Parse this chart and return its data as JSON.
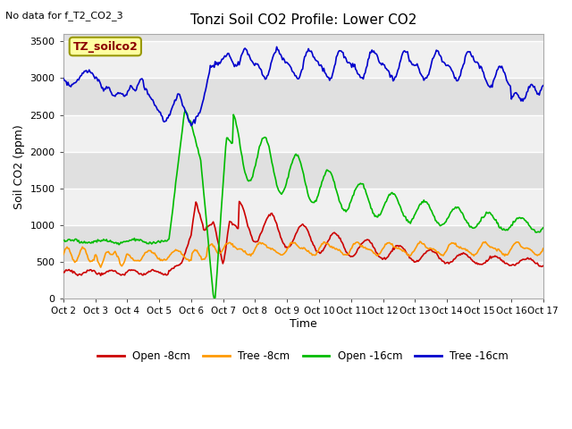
{
  "title": "Tonzi Soil CO2 Profile: Lower CO2",
  "subtitle": "No data for f_T2_CO2_3",
  "ylabel": "Soil CO2 (ppm)",
  "xlabel": "Time",
  "legend_label": "TZ_soilco2",
  "legend_entries": [
    "Open -8cm",
    "Tree -8cm",
    "Open -16cm",
    "Tree -16cm"
  ],
  "legend_colors": [
    "#cc0000",
    "#ff9900",
    "#00bb00",
    "#0000cc"
  ],
  "ylim": [
    0,
    3600
  ],
  "yticks": [
    0,
    500,
    1000,
    1500,
    2000,
    2500,
    3000,
    3500
  ],
  "bg_bands": [
    [
      0,
      500,
      "#f0f0f0"
    ],
    [
      500,
      1000,
      "#e0e0e0"
    ],
    [
      1000,
      1500,
      "#f0f0f0"
    ],
    [
      1500,
      2000,
      "#e0e0e0"
    ],
    [
      2000,
      2500,
      "#f0f0f0"
    ],
    [
      2500,
      3000,
      "#e0e0e0"
    ],
    [
      3000,
      3500,
      "#f0f0f0"
    ],
    [
      3500,
      3600,
      "#e0e0e0"
    ]
  ],
  "xtick_labels": [
    "Oct 2",
    "Oct 3",
    "Oct 4",
    "Oct 5",
    "Oct 6",
    "Oct 7",
    "Oct 8",
    "Oct 9",
    "Oct 10",
    "Oct 11",
    "Oct 12",
    "Oct 13",
    "Oct 14",
    "Oct 15",
    "Oct 16",
    "Oct 17"
  ]
}
